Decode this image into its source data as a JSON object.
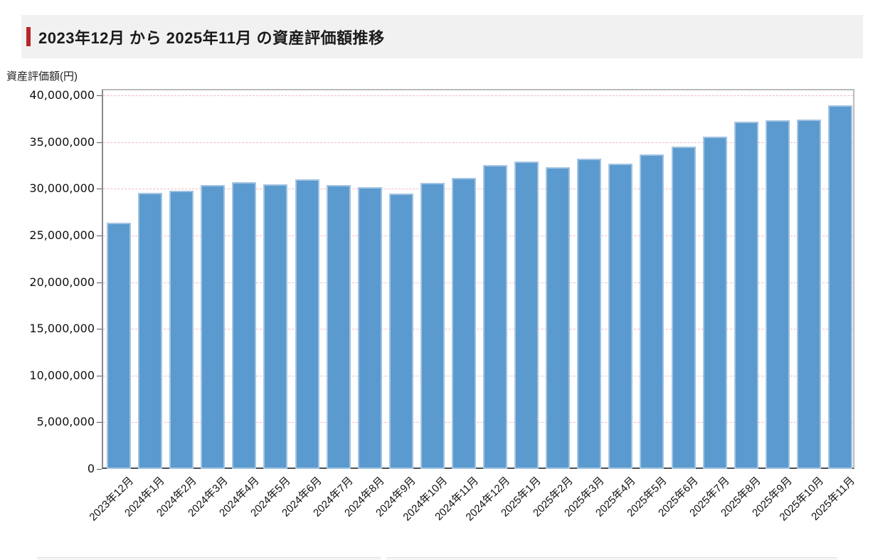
{
  "header": {
    "title": "2023年12月 から 2025年11月 の資産評価額推移",
    "accent_color": "#b8252c",
    "background": "#f1f1f1"
  },
  "chart_data": {
    "type": "bar",
    "title": "2023年12月 から 2025年11月 の資産評価額推移",
    "ylabel": "資産評価額(円)",
    "xlabel": "",
    "categories": [
      "2023年12月",
      "2024年1月",
      "2024年2月",
      "2024年3月",
      "2024年4月",
      "2024年5月",
      "2024年6月",
      "2024年7月",
      "2024年8月",
      "2024年9月",
      "2024年10月",
      "2024年11月",
      "2024年12月",
      "2025年1月",
      "2025年2月",
      "2025年3月",
      "2025年4月",
      "2025年5月",
      "2025年6月",
      "2025年7月",
      "2025年8月",
      "2025年9月",
      "2025年10月",
      "2025年11月"
    ],
    "values": [
      26400000,
      29600000,
      29800000,
      30400000,
      30700000,
      30500000,
      31000000,
      30400000,
      30200000,
      29500000,
      30600000,
      31200000,
      32500000,
      32900000,
      32300000,
      33200000,
      32700000,
      33700000,
      34500000,
      35600000,
      37200000,
      37300000,
      37400000,
      38900000
    ],
    "ylim": [
      0,
      40000000
    ],
    "ytick_step": 5000000,
    "ytick_labels": [
      "0",
      "5,000,000",
      "10,000,000",
      "15,000,000",
      "20,000,000",
      "25,000,000",
      "30,000,000",
      "35,000,000",
      "40,000,000"
    ],
    "grid": "horizontal-dashed",
    "legend": "none",
    "bar_color": "#5b9ace",
    "bar_border_color": "#a3c4e2",
    "gridline_color": "#f3b9c2"
  }
}
